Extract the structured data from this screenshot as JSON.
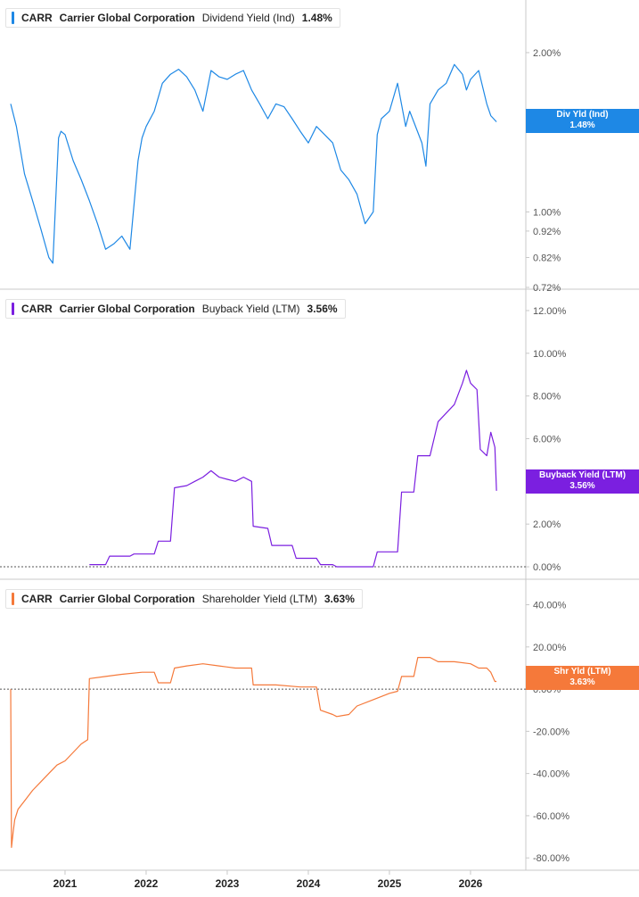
{
  "panels": [
    {
      "ticker": "CARR",
      "company": "Carrier Global Corporation",
      "metric": "Dividend Yield (Ind)",
      "value": "1.48%",
      "badge_label": "Div Yld (Ind)",
      "badge_value": "1.48%",
      "color": "#1e88e5"
    },
    {
      "ticker": "CARR",
      "company": "Carrier Global Corporation",
      "metric": "Buyback Yield (LTM)",
      "value": "3.56%",
      "badge_label": "Buyback Yield (LTM)",
      "badge_value": "3.56%",
      "color": "#7b1fe0"
    },
    {
      "ticker": "CARR",
      "company": "Carrier Global Corporation",
      "metric": "Shareholder Yield (LTM)",
      "value": "3.63%",
      "badge_label": "Shr Yld (LTM)",
      "badge_value": "3.63%",
      "color": "#f5793a"
    }
  ],
  "chart_data": [
    {
      "type": "line",
      "series": [
        {
          "name": "Dividend Yield (Ind)",
          "color": "#1e88e5",
          "x": [
            2020.33,
            2020.4,
            2020.5,
            2020.6,
            2020.7,
            2020.8,
            2020.85,
            2020.92,
            2020.95,
            2021.0,
            2021.1,
            2021.2,
            2021.3,
            2021.4,
            2021.5,
            2021.6,
            2021.7,
            2021.8,
            2021.9,
            2021.95,
            2022.0,
            2022.1,
            2022.2,
            2022.3,
            2022.4,
            2022.5,
            2022.6,
            2022.7,
            2022.8,
            2022.9,
            2023.0,
            2023.1,
            2023.2,
            2023.3,
            2023.4,
            2023.5,
            2023.6,
            2023.7,
            2023.8,
            2023.9,
            2024.0,
            2024.1,
            2024.2,
            2024.3,
            2024.4,
            2024.5,
            2024.6,
            2024.7,
            2024.8,
            2024.85,
            2024.9,
            2025.0,
            2025.1,
            2025.2,
            2025.25,
            2025.3,
            2025.4,
            2025.45,
            2025.5,
            2025.6,
            2025.7,
            2025.8,
            2025.9,
            2025.95,
            2026.0,
            2026.1,
            2026.2,
            2026.25,
            2026.32
          ],
          "y": [
            1.6,
            1.45,
            1.18,
            1.05,
            0.93,
            0.82,
            0.8,
            1.38,
            1.42,
            1.4,
            1.25,
            1.15,
            1.05,
            0.95,
            0.85,
            0.87,
            0.9,
            0.85,
            1.25,
            1.38,
            1.45,
            1.55,
            1.75,
            1.82,
            1.86,
            1.8,
            1.7,
            1.55,
            1.85,
            1.8,
            1.78,
            1.82,
            1.85,
            1.7,
            1.6,
            1.5,
            1.6,
            1.58,
            1.5,
            1.42,
            1.35,
            1.45,
            1.4,
            1.35,
            1.2,
            1.15,
            1.08,
            0.95,
            1.0,
            1.4,
            1.5,
            1.55,
            1.75,
            1.45,
            1.55,
            1.48,
            1.35,
            1.22,
            1.6,
            1.7,
            1.75,
            1.9,
            1.82,
            1.7,
            1.78,
            1.85,
            1.6,
            1.52,
            1.48
          ]
        }
      ],
      "ylim": [
        0.72,
        2.4
      ],
      "yscale": "log",
      "yticks": [
        0.72,
        0.82,
        0.92,
        1.0,
        2.0
      ],
      "ytick_labels": [
        "0.72%",
        "0.82%",
        "0.92%",
        "1.00%",
        "2.00%"
      ]
    },
    {
      "type": "line",
      "series": [
        {
          "name": "Buyback Yield (LTM)",
          "color": "#7b1fe0",
          "x": [
            2021.3,
            2021.5,
            2021.55,
            2021.8,
            2021.85,
            2022.1,
            2022.15,
            2022.3,
            2022.35,
            2022.5,
            2022.6,
            2022.7,
            2022.8,
            2022.9,
            2023.0,
            2023.1,
            2023.2,
            2023.3,
            2023.32,
            2023.5,
            2023.55,
            2023.8,
            2023.85,
            2024.1,
            2024.15,
            2024.3,
            2024.35,
            2024.8,
            2024.85,
            2025.1,
            2025.15,
            2025.3,
            2025.35,
            2025.5,
            2025.6,
            2025.7,
            2025.8,
            2025.9,
            2025.95,
            2026.0,
            2026.08,
            2026.12,
            2026.2,
            2026.25,
            2026.3,
            2026.32
          ],
          "y": [
            0.1,
            0.1,
            0.5,
            0.5,
            0.6,
            0.6,
            1.2,
            1.2,
            3.7,
            3.8,
            4.0,
            4.2,
            4.5,
            4.2,
            4.1,
            4.0,
            4.2,
            4.0,
            1.9,
            1.8,
            1.0,
            1.0,
            0.4,
            0.4,
            0.1,
            0.1,
            0.0,
            0.0,
            0.7,
            0.7,
            3.5,
            3.5,
            5.2,
            5.2,
            6.8,
            7.2,
            7.6,
            8.6,
            9.2,
            8.6,
            8.3,
            5.5,
            5.2,
            6.3,
            5.6,
            3.56
          ]
        }
      ],
      "ylim": [
        -0.5,
        12.5
      ],
      "yticks": [
        0,
        2,
        4,
        6,
        8,
        10,
        12
      ],
      "ytick_labels": [
        "0.00%",
        "2.00%",
        "4.00%",
        "6.00%",
        "8.00%",
        "10.00%",
        "12.00%"
      ]
    },
    {
      "type": "line",
      "series": [
        {
          "name": "Shareholder Yield (LTM)",
          "color": "#f5793a",
          "x": [
            2020.33,
            2020.34,
            2020.36,
            2020.38,
            2020.42,
            2020.5,
            2020.6,
            2020.7,
            2020.8,
            2020.9,
            2021.0,
            2021.1,
            2021.2,
            2021.28,
            2021.3,
            2021.5,
            2021.7,
            2021.95,
            2022.1,
            2022.15,
            2022.3,
            2022.35,
            2022.5,
            2022.7,
            2022.9,
            2023.1,
            2023.3,
            2023.32,
            2023.6,
            2023.9,
            2024.1,
            2024.15,
            2024.3,
            2024.35,
            2024.5,
            2024.6,
            2024.8,
            2025.0,
            2025.1,
            2025.15,
            2025.3,
            2025.35,
            2025.5,
            2025.6,
            2025.8,
            2026.0,
            2026.1,
            2026.2,
            2026.25,
            2026.3,
            2026.32
          ],
          "y": [
            0,
            -75,
            -68,
            -62,
            -57,
            -53,
            -48,
            -44,
            -40,
            -36,
            -34,
            -30,
            -26,
            -24,
            5,
            6,
            7,
            8,
            8,
            3,
            3,
            10,
            11,
            12,
            11,
            10,
            10,
            2,
            2,
            1,
            1,
            -10,
            -12,
            -13,
            -12,
            -8,
            -5,
            -2,
            -1,
            6,
            6,
            15,
            15,
            13,
            13,
            12,
            10,
            10,
            8,
            3.63,
            3.63
          ]
        }
      ],
      "ylim": [
        -85,
        47
      ],
      "yticks": [
        -80,
        -60,
        -40,
        -20,
        0,
        20,
        40
      ],
      "ytick_labels": [
        "-80.00%",
        "-60.00%",
        "-40.00%",
        "-20.00%",
        "0.00%",
        "20.00%",
        "40.00%"
      ]
    }
  ],
  "x_axis": {
    "ticks": [
      2021,
      2022,
      2023,
      2024,
      2025,
      2026
    ],
    "labels": [
      "2021",
      "2022",
      "2023",
      "2024",
      "2025",
      "2026"
    ],
    "xlim": [
      2020.33,
      2026.55
    ]
  },
  "colors": {
    "axis": "#c8c8c8",
    "tick_text": "#555555",
    "zero_line": "#555555",
    "dark_text": "#222222"
  }
}
